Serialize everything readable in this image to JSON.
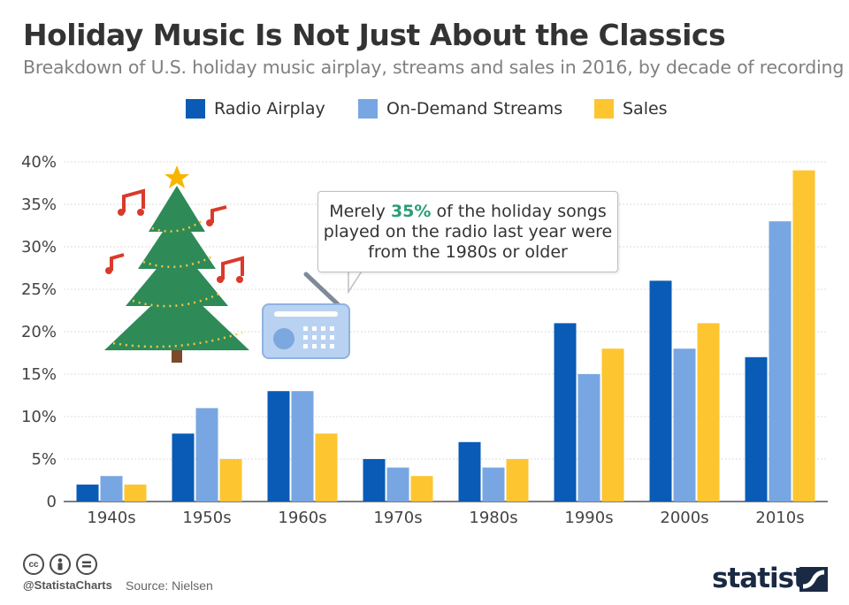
{
  "header": {
    "title": "Holiday Music Is Not Just About the Classics",
    "subtitle": "Breakdown of U.S. holiday music airplay, streams and sales in 2016, by decade of recording"
  },
  "annotation": {
    "prefix": "Merely ",
    "highlight": "35%",
    "suffix": " of the holiday songs played on the radio last year were from the 1980s or older"
  },
  "footer": {
    "handle": "@StatistaCharts",
    "source": "Source: Nielsen",
    "brand": "statista"
  },
  "colors": {
    "radio": "#0a5bb5",
    "streams": "#78a6e2",
    "sales": "#fdc530",
    "highlight": "#2a9d78"
  },
  "chart_data": {
    "type": "bar",
    "categories": [
      "1940s",
      "1950s",
      "1960s",
      "1970s",
      "1980s",
      "1990s",
      "2000s",
      "2010s"
    ],
    "series": [
      {
        "name": "Radio Airplay",
        "values": [
          2,
          8,
          13,
          5,
          7,
          21,
          26,
          17
        ]
      },
      {
        "name": "On-Demand Streams",
        "values": [
          3,
          11,
          13,
          4,
          4,
          15,
          18,
          33
        ]
      },
      {
        "name": "Sales",
        "values": [
          2,
          5,
          8,
          3,
          5,
          18,
          21,
          39
        ]
      }
    ],
    "ylim": [
      0,
      40
    ],
    "yticks": [
      "0",
      "5%",
      "10%",
      "15%",
      "20%",
      "25%",
      "30%",
      "35%",
      "40%"
    ],
    "grid": true,
    "legend": "top-center"
  }
}
